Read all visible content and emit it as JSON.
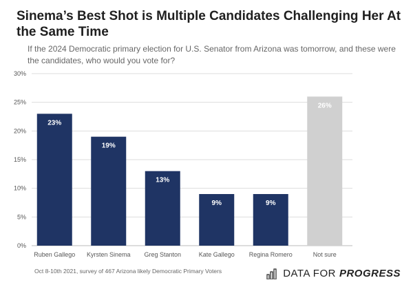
{
  "title": "Sinema’s Best Shot is Multiple Candidates Challenging Her At the Same Time",
  "subtitle": "If the 2024 Democratic primary election for U.S. Senator from Arizona was tomorrow, and these were the candidates, who would you vote for?",
  "footnote": "Oct 8-10th 2021, survey of 467 Arizona likely Democratic Primary Voters",
  "brand": {
    "name_part1": "DATA FOR",
    "name_part2": "PROGRESS",
    "icon": "bar-chart-icon"
  },
  "colors": {
    "candidate_bar": "#1f3464",
    "not_sure_bar": "#d0d0d0",
    "gridline": "#dddddd",
    "axis_text": "#555555",
    "data_label": "#ffffff"
  },
  "chart_data": {
    "type": "bar",
    "categories": [
      "Ruben Gallego",
      "Kyrsten Sinema",
      "Greg Stanton",
      "Kate Gallego",
      "Regina Romero",
      "Not sure"
    ],
    "values": [
      23,
      19,
      13,
      9,
      9,
      26
    ],
    "data_labels": [
      "23%",
      "19%",
      "13%",
      "9%",
      "9%",
      "26%"
    ],
    "bar_colors": [
      "#1f3464",
      "#1f3464",
      "#1f3464",
      "#1f3464",
      "#1f3464",
      "#d0d0d0"
    ],
    "ylim": [
      0,
      30
    ],
    "yticks": [
      0,
      5,
      10,
      15,
      20,
      25,
      30
    ],
    "ytick_labels": [
      "0%",
      "5%",
      "10%",
      "15%",
      "20%",
      "25%",
      "30%"
    ],
    "xlabel": "",
    "ylabel": "",
    "grid": true,
    "legend": false
  }
}
